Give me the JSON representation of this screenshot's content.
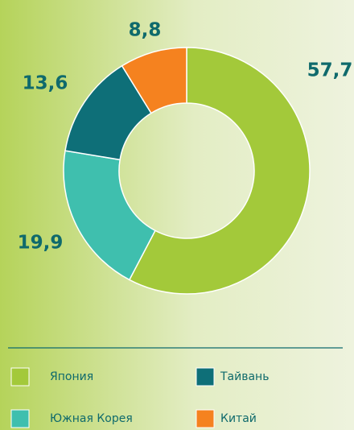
{
  "chart_data": {
    "type": "donut",
    "categories": [
      "Япония",
      "Южная Корея",
      "Тайвань",
      "Китай"
    ],
    "values": [
      57.7,
      19.9,
      13.6,
      8.8
    ],
    "value_labels": [
      "57,7",
      "19,9",
      "13,6",
      "8,8"
    ],
    "colors": [
      "#a3c93a",
      "#3fbfae",
      "#0e6f78",
      "#f5821f"
    ]
  }
}
